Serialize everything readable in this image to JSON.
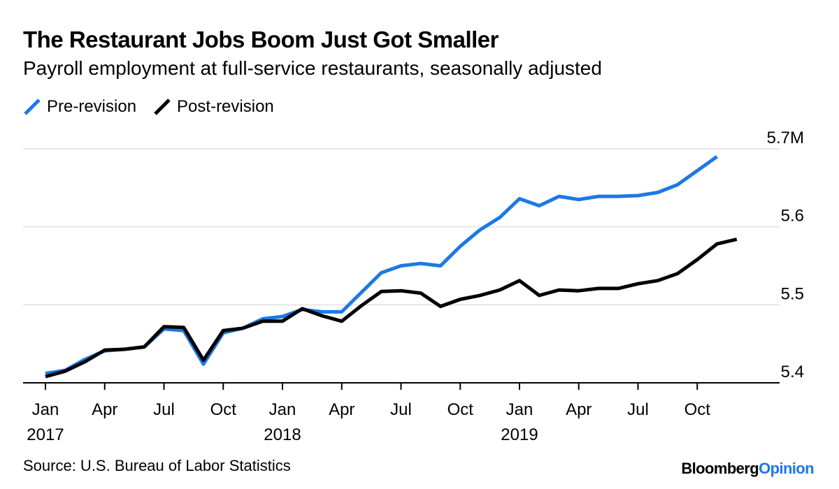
{
  "header": {
    "title": "The Restaurant Jobs Boom Just Got Smaller",
    "subtitle": "Payroll employment at full-service restaurants, seasonally adjusted"
  },
  "footer": {
    "source": "Source: U.S. Bureau of Labor Statistics",
    "brand_part1": "Bloomberg",
    "brand_part2": "Opinion"
  },
  "colors": {
    "pre_revision": "#1c78e6",
    "post_revision": "#000000",
    "gridline": "#e6e6e6",
    "axis": "#000000"
  },
  "chart_data": {
    "type": "line",
    "title": "The Restaurant Jobs Boom Just Got Smaller",
    "subtitle": "Payroll employment at full-service restaurants, seasonally adjusted",
    "x": [
      "2017-01",
      "2017-02",
      "2017-03",
      "2017-04",
      "2017-05",
      "2017-06",
      "2017-07",
      "2017-08",
      "2017-09",
      "2017-10",
      "2017-11",
      "2017-12",
      "2018-01",
      "2018-02",
      "2018-03",
      "2018-04",
      "2018-05",
      "2018-06",
      "2018-07",
      "2018-08",
      "2018-09",
      "2018-10",
      "2018-11",
      "2018-12",
      "2019-01",
      "2019-02",
      "2019-03",
      "2019-04",
      "2019-05",
      "2019-06",
      "2019-07",
      "2019-08",
      "2019-09",
      "2019-10",
      "2019-11",
      "2019-12"
    ],
    "series": [
      {
        "name": "Pre-revision",
        "color": "#1c78e6",
        "values": [
          5.412,
          5.416,
          5.43,
          5.441,
          5.443,
          5.446,
          5.469,
          5.467,
          5.424,
          5.464,
          5.47,
          5.482,
          5.485,
          5.494,
          5.491,
          5.491,
          5.516,
          5.541,
          5.55,
          5.553,
          5.55,
          5.575,
          5.596,
          5.612,
          5.636,
          5.627,
          5.639,
          5.635,
          5.639,
          5.639,
          5.64,
          5.644,
          5.654,
          5.672,
          5.69,
          null
        ]
      },
      {
        "name": "Post-revision",
        "color": "#000000",
        "values": [
          5.408,
          5.415,
          5.427,
          5.442,
          5.443,
          5.446,
          5.472,
          5.471,
          5.429,
          5.467,
          5.47,
          5.479,
          5.479,
          5.495,
          5.486,
          5.479,
          5.499,
          5.517,
          5.518,
          5.515,
          5.498,
          5.507,
          5.512,
          5.519,
          5.531,
          5.512,
          5.519,
          5.518,
          5.521,
          5.521,
          5.527,
          5.531,
          5.54,
          5.558,
          5.578,
          5.584
        ]
      }
    ],
    "x_ticks": [
      {
        "month": "Jan",
        "year": "2017",
        "index": 0
      },
      {
        "month": "Apr",
        "year": "",
        "index": 3
      },
      {
        "month": "Jul",
        "year": "",
        "index": 6
      },
      {
        "month": "Oct",
        "year": "",
        "index": 9
      },
      {
        "month": "Jan",
        "year": "2018",
        "index": 12
      },
      {
        "month": "Apr",
        "year": "",
        "index": 15
      },
      {
        "month": "Jul",
        "year": "",
        "index": 18
      },
      {
        "month": "Oct",
        "year": "",
        "index": 21
      },
      {
        "month": "Jan",
        "year": "2019",
        "index": 24
      },
      {
        "month": "Apr",
        "year": "",
        "index": 27
      },
      {
        "month": "Jul",
        "year": "",
        "index": 30
      },
      {
        "month": "Oct",
        "year": "",
        "index": 33
      }
    ],
    "y_ticks": [
      {
        "value": 5.7,
        "label": "5.7M"
      },
      {
        "value": 5.6,
        "label": "5.6"
      },
      {
        "value": 5.5,
        "label": "5.5"
      },
      {
        "value": 5.4,
        "label": "5.4"
      }
    ],
    "ylim": [
      5.4,
      5.7
    ],
    "y_axis_side": "right",
    "grid": true,
    "legend_position": "top-left"
  }
}
